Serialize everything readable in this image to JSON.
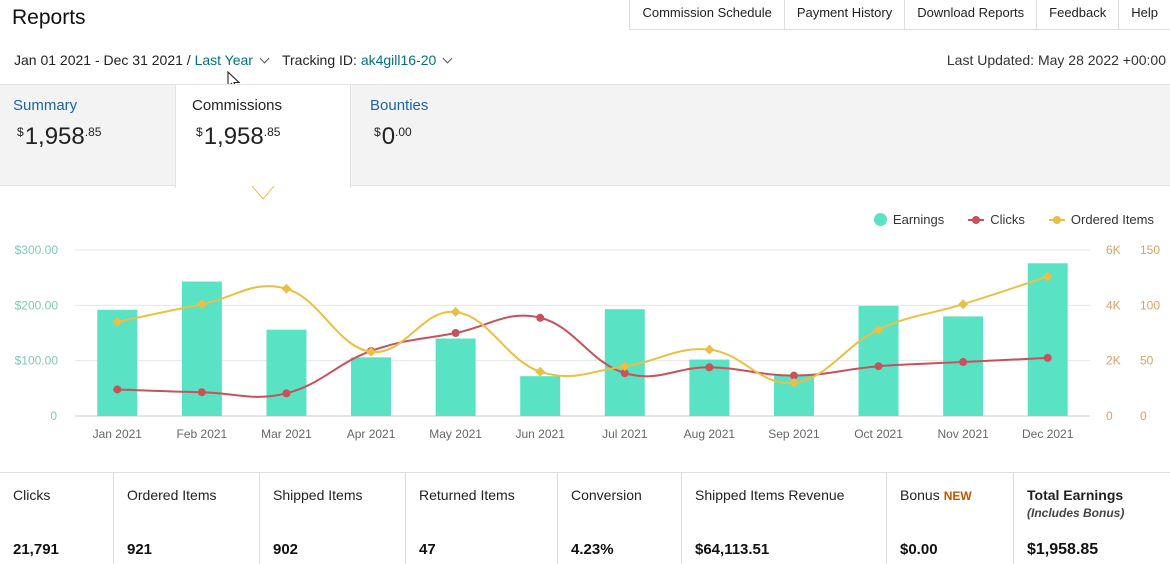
{
  "header": {
    "title": "Reports",
    "nav": [
      "Commission Schedule",
      "Payment History",
      "Download Reports",
      "Feedback",
      "Help"
    ]
  },
  "filters": {
    "date_range": "Jan 01 2021 - Dec 31 2021 /",
    "date_preset": "Last Year",
    "tracking_label": "Tracking ID:",
    "tracking_id": "ak4gill16-20",
    "last_updated": "Last Updated: May 28 2022 +00:00"
  },
  "tabs": [
    {
      "label": "Summary",
      "currency": "$",
      "whole": "1,958",
      "cents": ".85"
    },
    {
      "label": "Commissions",
      "currency": "$",
      "whole": "1,958",
      "cents": ".85"
    },
    {
      "label": "Bounties",
      "currency": "$",
      "whole": "0",
      "cents": ".00"
    }
  ],
  "legend": [
    "Earnings",
    "Clicks",
    "Ordered Items"
  ],
  "colors": {
    "earnings": "#59e2c3",
    "clicks": "#c9515a",
    "ordered": "#ebbf45",
    "link": "#007185"
  },
  "chart_data": {
    "type": "bar",
    "categories": [
      "Jan 2021",
      "Feb 2021",
      "Mar 2021",
      "Apr 2021",
      "May 2021",
      "Jun 2021",
      "Jul 2021",
      "Aug 2021",
      "Sep 2021",
      "Oct 2021",
      "Nov 2021",
      "Dec 2021"
    ],
    "series": [
      {
        "name": "Earnings",
        "type": "bar",
        "axis": "left",
        "values": [
          192,
          243,
          156,
          106,
          140,
          72,
          193,
          102,
          73,
          199,
          180,
          276
        ]
      },
      {
        "name": "Clicks",
        "type": "line",
        "axis": "right1",
        "values": [
          960,
          860,
          820,
          2350,
          3000,
          3550,
          1550,
          1760,
          1460,
          1800,
          1950,
          2100
        ]
      },
      {
        "name": "Ordered Items",
        "type": "line",
        "axis": "right2",
        "values": [
          85,
          101,
          115,
          58,
          94,
          40,
          45,
          60,
          30,
          78,
          101,
          126
        ]
      }
    ],
    "left_axis": {
      "ticks": [
        "0",
        "$100.00",
        "$200.00",
        "$300.00"
      ],
      "ylim": [
        0,
        300
      ]
    },
    "right1_axis": {
      "ticks": [
        "0",
        "2K",
        "4K",
        "6K"
      ],
      "ylim": [
        0,
        6000
      ]
    },
    "right2_axis": {
      "ticks": [
        "0",
        "50",
        "100",
        "150"
      ],
      "ylim": [
        0,
        150
      ]
    },
    "grid": true,
    "legend_position": "top-right"
  },
  "stats": [
    {
      "label": "Clicks",
      "value": "21,791"
    },
    {
      "label": "Ordered Items",
      "value": "921"
    },
    {
      "label": "Shipped Items",
      "value": "902"
    },
    {
      "label": "Returned Items",
      "value": "47"
    },
    {
      "label": "Conversion",
      "value": "4.23%"
    },
    {
      "label": "Shipped Items Revenue",
      "value": "$64,113.51"
    },
    {
      "label": "Bonus",
      "badge": "NEW",
      "value": "$0.00"
    },
    {
      "label": "Total Earnings",
      "sub": "(Includes Bonus)",
      "value": "$1,958.85"
    }
  ]
}
